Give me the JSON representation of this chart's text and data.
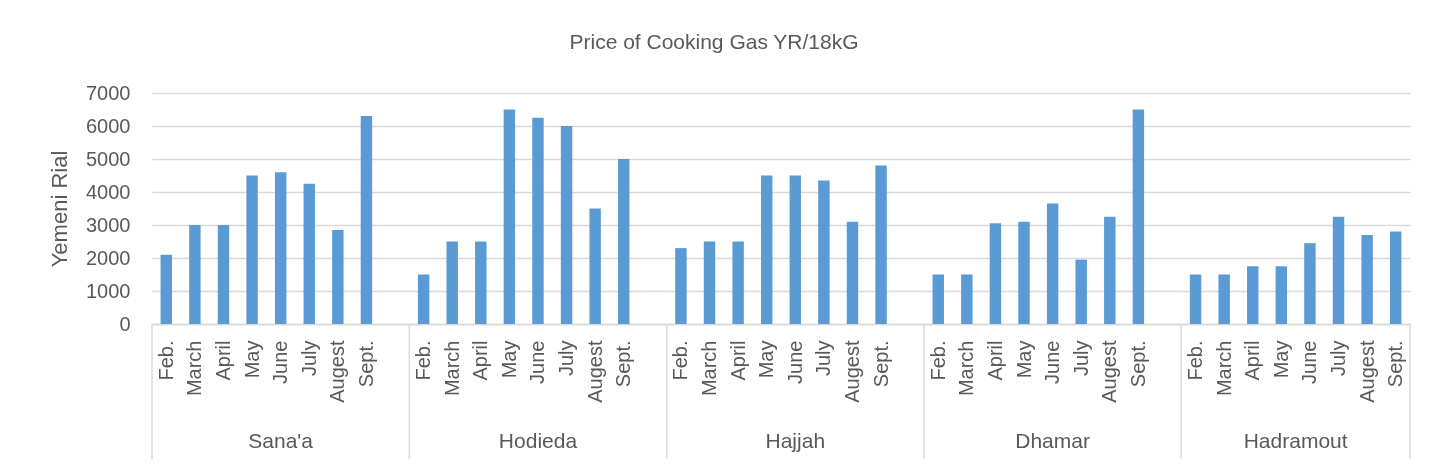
{
  "chart_data": {
    "type": "bar",
    "title": "Price of Cooking Gas YR/18kG",
    "ylabel": "Yemeni Rial",
    "categories": [
      "Feb.",
      "March",
      "April",
      "May",
      "June",
      "July",
      "Augest",
      "Sept.",
      null,
      "Feb.",
      "March",
      "April",
      "May",
      "June",
      "July",
      "Augest",
      "Sept.",
      null,
      "Feb.",
      "March",
      "April",
      "May",
      "June",
      "July",
      "Augest",
      "Sept.",
      null,
      "Feb.",
      "March",
      "April",
      "May",
      "June",
      "July",
      "Augest",
      "Sept.",
      null,
      "Feb.",
      "March",
      "April",
      "May",
      "June",
      "July",
      "Augest",
      "Sept."
    ],
    "values": [
      2100,
      3000,
      3000,
      4500,
      4600,
      4250,
      2850,
      6300,
      null,
      1500,
      2500,
      2500,
      6500,
      6250,
      6000,
      3500,
      5000,
      null,
      2300,
      2500,
      2500,
      4500,
      4500,
      4350,
      3100,
      4800,
      null,
      1500,
      1500,
      3050,
      3100,
      3650,
      1950,
      3250,
      6500,
      null,
      1500,
      1500,
      1750,
      1750,
      2450,
      3250,
      2700,
      2800
    ],
    "color": "#5b9bd5",
    "ylim": [
      0,
      7000
    ],
    "yticks": [
      0,
      1000,
      2000,
      3000,
      4000,
      5000,
      6000,
      7000
    ],
    "grid": "y",
    "annotations": [
      "Sana'a",
      "Hodieda",
      "Hajjah",
      "Dhamar",
      "Hadramout"
    ]
  }
}
